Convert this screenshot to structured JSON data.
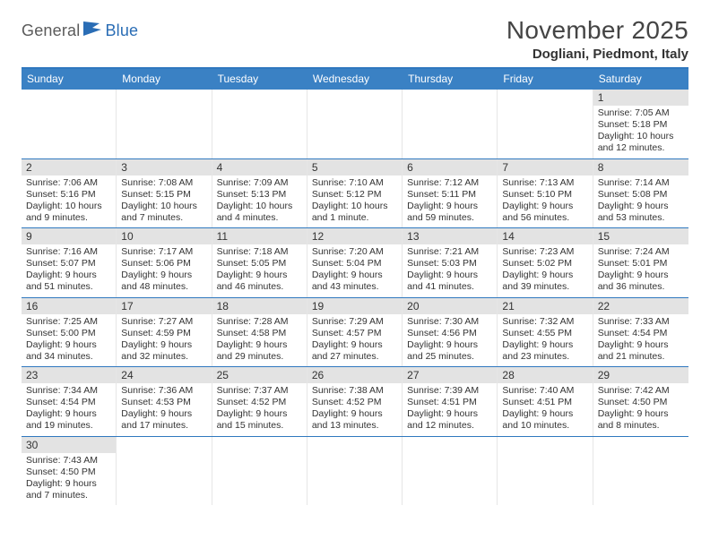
{
  "logo": {
    "text1": "General",
    "text2": "Blue"
  },
  "title": "November 2025",
  "location": "Dogliani, Piedmont, Italy",
  "colors": {
    "header_bg": "#3a81c4",
    "header_border": "#2f78bf",
    "datebar_bg": "#e3e3e3",
    "logo_gray": "#5a5a5a",
    "logo_blue": "#2a6db5"
  },
  "day_names": [
    "Sunday",
    "Monday",
    "Tuesday",
    "Wednesday",
    "Thursday",
    "Friday",
    "Saturday"
  ],
  "label_prefix": {
    "sunrise": "Sunrise: ",
    "sunset": "Sunset: ",
    "daylight": "Daylight: "
  },
  "weeks": [
    [
      null,
      null,
      null,
      null,
      null,
      null,
      {
        "d": "1",
        "sr": "7:05 AM",
        "ss": "5:18 PM",
        "dl": "10 hours and 12 minutes."
      }
    ],
    [
      {
        "d": "2",
        "sr": "7:06 AM",
        "ss": "5:16 PM",
        "dl": "10 hours and 9 minutes."
      },
      {
        "d": "3",
        "sr": "7:08 AM",
        "ss": "5:15 PM",
        "dl": "10 hours and 7 minutes."
      },
      {
        "d": "4",
        "sr": "7:09 AM",
        "ss": "5:13 PM",
        "dl": "10 hours and 4 minutes."
      },
      {
        "d": "5",
        "sr": "7:10 AM",
        "ss": "5:12 PM",
        "dl": "10 hours and 1 minute."
      },
      {
        "d": "6",
        "sr": "7:12 AM",
        "ss": "5:11 PM",
        "dl": "9 hours and 59 minutes."
      },
      {
        "d": "7",
        "sr": "7:13 AM",
        "ss": "5:10 PM",
        "dl": "9 hours and 56 minutes."
      },
      {
        "d": "8",
        "sr": "7:14 AM",
        "ss": "5:08 PM",
        "dl": "9 hours and 53 minutes."
      }
    ],
    [
      {
        "d": "9",
        "sr": "7:16 AM",
        "ss": "5:07 PM",
        "dl": "9 hours and 51 minutes."
      },
      {
        "d": "10",
        "sr": "7:17 AM",
        "ss": "5:06 PM",
        "dl": "9 hours and 48 minutes."
      },
      {
        "d": "11",
        "sr": "7:18 AM",
        "ss": "5:05 PM",
        "dl": "9 hours and 46 minutes."
      },
      {
        "d": "12",
        "sr": "7:20 AM",
        "ss": "5:04 PM",
        "dl": "9 hours and 43 minutes."
      },
      {
        "d": "13",
        "sr": "7:21 AM",
        "ss": "5:03 PM",
        "dl": "9 hours and 41 minutes."
      },
      {
        "d": "14",
        "sr": "7:23 AM",
        "ss": "5:02 PM",
        "dl": "9 hours and 39 minutes."
      },
      {
        "d": "15",
        "sr": "7:24 AM",
        "ss": "5:01 PM",
        "dl": "9 hours and 36 minutes."
      }
    ],
    [
      {
        "d": "16",
        "sr": "7:25 AM",
        "ss": "5:00 PM",
        "dl": "9 hours and 34 minutes."
      },
      {
        "d": "17",
        "sr": "7:27 AM",
        "ss": "4:59 PM",
        "dl": "9 hours and 32 minutes."
      },
      {
        "d": "18",
        "sr": "7:28 AM",
        "ss": "4:58 PM",
        "dl": "9 hours and 29 minutes."
      },
      {
        "d": "19",
        "sr": "7:29 AM",
        "ss": "4:57 PM",
        "dl": "9 hours and 27 minutes."
      },
      {
        "d": "20",
        "sr": "7:30 AM",
        "ss": "4:56 PM",
        "dl": "9 hours and 25 minutes."
      },
      {
        "d": "21",
        "sr": "7:32 AM",
        "ss": "4:55 PM",
        "dl": "9 hours and 23 minutes."
      },
      {
        "d": "22",
        "sr": "7:33 AM",
        "ss": "4:54 PM",
        "dl": "9 hours and 21 minutes."
      }
    ],
    [
      {
        "d": "23",
        "sr": "7:34 AM",
        "ss": "4:54 PM",
        "dl": "9 hours and 19 minutes."
      },
      {
        "d": "24",
        "sr": "7:36 AM",
        "ss": "4:53 PM",
        "dl": "9 hours and 17 minutes."
      },
      {
        "d": "25",
        "sr": "7:37 AM",
        "ss": "4:52 PM",
        "dl": "9 hours and 15 minutes."
      },
      {
        "d": "26",
        "sr": "7:38 AM",
        "ss": "4:52 PM",
        "dl": "9 hours and 13 minutes."
      },
      {
        "d": "27",
        "sr": "7:39 AM",
        "ss": "4:51 PM",
        "dl": "9 hours and 12 minutes."
      },
      {
        "d": "28",
        "sr": "7:40 AM",
        "ss": "4:51 PM",
        "dl": "9 hours and 10 minutes."
      },
      {
        "d": "29",
        "sr": "7:42 AM",
        "ss": "4:50 PM",
        "dl": "9 hours and 8 minutes."
      }
    ],
    [
      {
        "d": "30",
        "sr": "7:43 AM",
        "ss": "4:50 PM",
        "dl": "9 hours and 7 minutes."
      },
      null,
      null,
      null,
      null,
      null,
      null
    ]
  ]
}
